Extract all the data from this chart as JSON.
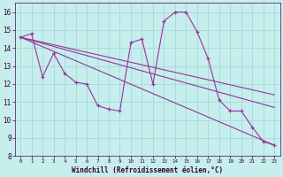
{
  "xlabel": "Windchill (Refroidissement éolien,°C)",
  "background_color": "#c5eeed",
  "grid_color": "#a8d8d8",
  "line_color": "#993399",
  "x_ticks": [
    0,
    1,
    2,
    3,
    4,
    5,
    6,
    7,
    8,
    9,
    10,
    11,
    12,
    13,
    14,
    15,
    16,
    17,
    18,
    19,
    20,
    21,
    22,
    23
  ],
  "ylim": [
    8,
    16.5
  ],
  "xlim": [
    -0.5,
    23.5
  ],
  "main_x": [
    0,
    1,
    2,
    3,
    4,
    5,
    6,
    7,
    8,
    9,
    10,
    11,
    12,
    13,
    14,
    15,
    16,
    17,
    18,
    19,
    20,
    21,
    22,
    23
  ],
  "main_y": [
    14.6,
    14.8,
    12.4,
    13.7,
    12.6,
    12.1,
    12.0,
    10.8,
    10.6,
    10.5,
    14.3,
    14.5,
    12.0,
    15.5,
    16.0,
    16.0,
    14.9,
    13.4,
    11.1,
    10.5,
    10.5,
    9.6,
    8.8,
    8.6
  ],
  "trend1_x": [
    0,
    23
  ],
  "trend1_y": [
    14.6,
    11.4
  ],
  "trend2_x": [
    0,
    23
  ],
  "trend2_y": [
    14.6,
    10.7
  ],
  "trend3_x": [
    0,
    23
  ],
  "trend3_y": [
    14.6,
    8.6
  ],
  "y_ticks": [
    8,
    9,
    10,
    11,
    12,
    13,
    14,
    15,
    16
  ]
}
